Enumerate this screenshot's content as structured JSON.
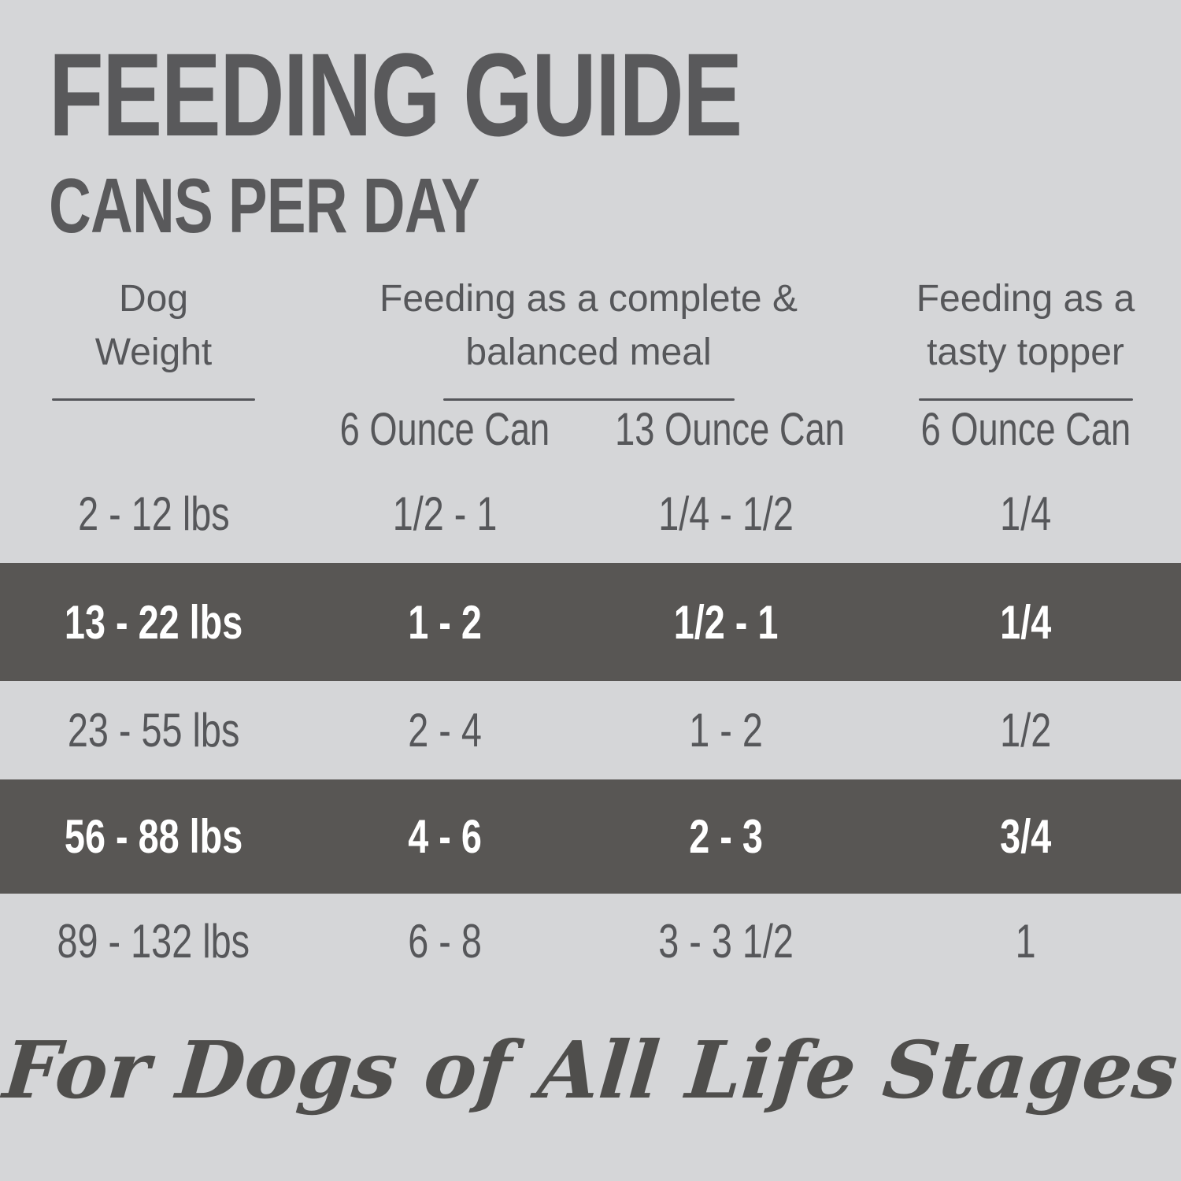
{
  "colors": {
    "background": "#d5d6d8",
    "highlight_band": "#585654",
    "heading_text": "#59595b",
    "body_text": "#56575a",
    "highlight_text": "#ffffff"
  },
  "header": {
    "title": "FEEDING GUIDE",
    "subtitle": "CANS PER DAY"
  },
  "table": {
    "groups": [
      {
        "label": "Dog Weight",
        "line1": "Dog",
        "line2": "Weight"
      },
      {
        "label": "Feeding as a complete & balanced meal",
        "line1": "Feeding as a complete &",
        "line2": "balanced meal"
      },
      {
        "label": "Feeding as a tasty topper",
        "line1": "Feeding as a",
        "line2": "tasty topper"
      }
    ],
    "sub_headers": [
      "6 Ounce Can",
      "13 Ounce Can",
      "6 Ounce Can"
    ],
    "rows": [
      {
        "weight": "2 - 12 lbs",
        "complete_6oz": "1/2 - 1",
        "complete_13oz": "1/4 - 1/2",
        "topper_6oz": "1/4",
        "highlighted": false
      },
      {
        "weight": "13 - 22 lbs",
        "complete_6oz": "1 - 2",
        "complete_13oz": "1/2 - 1",
        "topper_6oz": "1/4",
        "highlighted": true
      },
      {
        "weight": "23 - 55 lbs",
        "complete_6oz": "2 - 4",
        "complete_13oz": "1 - 2",
        "topper_6oz": "1/2",
        "highlighted": false
      },
      {
        "weight": "56 - 88 lbs",
        "complete_6oz": "4 - 6",
        "complete_13oz": "2 - 3",
        "topper_6oz": "3/4",
        "highlighted": true
      },
      {
        "weight": "89 - 132 lbs",
        "complete_6oz": "6 - 8",
        "complete_13oz": "3 - 3 1/2",
        "topper_6oz": "1",
        "highlighted": false
      }
    ]
  },
  "footer": {
    "tagline": "For Dogs of All Life Stages"
  },
  "chart_data": {
    "type": "table",
    "title": "FEEDING GUIDE",
    "subtitle": "CANS PER DAY",
    "columns": [
      "Dog Weight",
      "Feeding as a complete & balanced meal - 6 Ounce Can",
      "Feeding as a complete & balanced meal - 13 Ounce Can",
      "Feeding as a tasty topper - 6 Ounce Can"
    ],
    "rows": [
      [
        "2 - 12 lbs",
        "1/2 - 1",
        "1/4 - 1/2",
        "1/4"
      ],
      [
        "13 - 22 lbs",
        "1 - 2",
        "1/2 - 1",
        "1/4"
      ],
      [
        "23 - 55 lbs",
        "2 - 4",
        "1 - 2",
        "1/2"
      ],
      [
        "56 - 88 lbs",
        "4 - 6",
        "2 - 3",
        "3/4"
      ],
      [
        "89 - 132 lbs",
        "6 - 8",
        "3 - 3 1/2",
        "1"
      ]
    ],
    "highlighted_row_indexes": [
      1,
      3
    ],
    "footnote": "For Dogs of All Life Stages"
  }
}
